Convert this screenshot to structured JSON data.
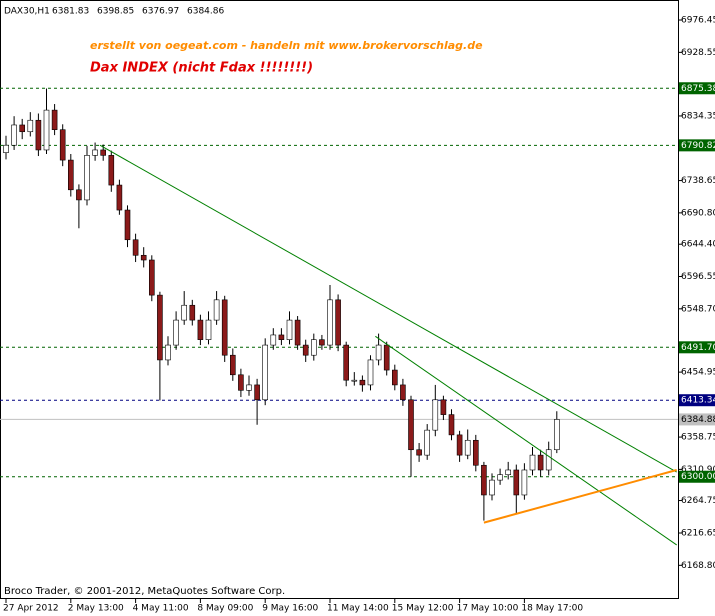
{
  "chart_data": {
    "type": "candlestick",
    "symbol": "DAX30,H1",
    "header_ohlc": [
      6381.83,
      6398.85,
      6376.97,
      6384.86
    ],
    "watermark": "erstellt von oegeat.com - handeln mit www.brokervorschlag.de",
    "title": "Dax  INDEX   (nicht Fdax !!!!!!!!)",
    "footer": "Broco Trader, © 2001-2012, MetaQuotes Software Corp.",
    "categories": [
      "27 Apr 2012",
      null,
      null,
      null,
      null,
      null,
      null,
      null,
      "2 May 13:00",
      null,
      null,
      null,
      null,
      null,
      null,
      null,
      "4 May 11:00",
      null,
      null,
      null,
      null,
      null,
      null,
      null,
      "8 May 09:00",
      null,
      null,
      null,
      null,
      null,
      null,
      null,
      "9 May 16:00",
      null,
      null,
      null,
      null,
      null,
      null,
      null,
      "11 May 14:00",
      null,
      null,
      null,
      null,
      null,
      null,
      null,
      "15 May 12:00",
      null,
      null,
      null,
      null,
      null,
      null,
      null,
      "17 May 10:00",
      null,
      null,
      null,
      null,
      null,
      null,
      null,
      "18 May 17:00",
      null,
      null,
      null,
      null
    ],
    "open": [
      6780,
      6791,
      6821,
      6811,
      6828,
      6784,
      6843,
      6814,
      6769,
      6725,
      6710,
      6776,
      6784,
      6776,
      6732,
      6695,
      6651,
      6628,
      6621,
      6569,
      6473,
      6495,
      6532,
      6554,
      6532,
      6503,
      6532,
      6562,
      6480,
      6451,
      6428,
      6436,
      6414,
      6495,
      6510,
      6503,
      6532,
      6495,
      6480,
      6503,
      6495,
      6562,
      6495,
      6443,
      6443,
      6436,
      6473,
      6495,
      6458,
      6436,
      6414,
      6340,
      6332,
      6369,
      6414,
      6392,
      6362,
      6332,
      6354,
      6317,
      6273,
      6295,
      6303,
      6310,
      6273,
      6310,
      6332,
      6310,
      6340
    ],
    "high": [
      6805,
      6834,
      6830,
      6840,
      6838,
      6875,
      6852,
      6822,
      6778,
      6733,
      6790,
      6795,
      6792,
      6783,
      6740,
      6702,
      6660,
      6640,
      6628,
      6574,
      6508,
      6545,
      6575,
      6562,
      6540,
      6545,
      6575,
      6568,
      6490,
      6460,
      6450,
      6445,
      6505,
      6520,
      6520,
      6545,
      6538,
      6503,
      6512,
      6510,
      6584,
      6570,
      6500,
      6455,
      6450,
      6480,
      6512,
      6500,
      6466,
      6445,
      6420,
      6350,
      6378,
      6436,
      6420,
      6400,
      6368,
      6370,
      6362,
      6322,
      6305,
      6312,
      6322,
      6318,
      6320,
      6344,
      6340,
      6352,
      6397
    ],
    "low": [
      6770,
      6784,
      6800,
      6804,
      6775,
      6778,
      6806,
      6760,
      6715,
      6668,
      6702,
      6768,
      6768,
      6722,
      6688,
      6640,
      6618,
      6610,
      6560,
      6413,
      6465,
      6488,
      6525,
      6524,
      6495,
      6496,
      6525,
      6470,
      6442,
      6418,
      6420,
      6377,
      6406,
      6488,
      6495,
      6496,
      6488,
      6470,
      6472,
      6488,
      6488,
      6486,
      6434,
      6435,
      6426,
      6428,
      6465,
      6450,
      6428,
      6405,
      6300,
      6322,
      6325,
      6360,
      6384,
      6354,
      6322,
      6326,
      6308,
      6235,
      6265,
      6288,
      6296,
      6245,
      6266,
      6302,
      6300,
      6302,
      6335
    ],
    "close": [
      6791,
      6821,
      6811,
      6828,
      6784,
      6843,
      6814,
      6769,
      6725,
      6710,
      6776,
      6784,
      6776,
      6732,
      6695,
      6651,
      6628,
      6621,
      6569,
      6473,
      6495,
      6532,
      6554,
      6532,
      6503,
      6532,
      6562,
      6480,
      6451,
      6428,
      6436,
      6414,
      6495,
      6510,
      6503,
      6532,
      6495,
      6480,
      6503,
      6495,
      6562,
      6495,
      6443,
      6443,
      6436,
      6473,
      6495,
      6458,
      6436,
      6414,
      6340,
      6332,
      6369,
      6414,
      6392,
      6362,
      6332,
      6354,
      6317,
      6273,
      6295,
      6303,
      6310,
      6273,
      6310,
      6332,
      6310,
      6340,
      6384.88
    ],
    "up_color": "#ffffff",
    "down_color": "#8b1a1a",
    "ylim": [
      6120.4,
      7006.1
    ],
    "yticks": [
      6976.45,
      6928.55,
      6834.35,
      6738.65,
      {
        "value": 6690.8,
        "label": "6690.80"
      },
      {
        "value": 6644.4,
        "label": "6644.40"
      },
      6596.55,
      {
        "value": 6548.7,
        "label": "6548.70"
      },
      6454.95,
      6358.75,
      {
        "value": 6310.9,
        "label": "6310.90"
      },
      6264.75,
      6216.65,
      {
        "value": 6168.8,
        "label": "6168.80"
      }
    ],
    "levels": [
      {
        "value": 6875.38,
        "color": "#006400"
      },
      {
        "value": 6790.82,
        "color": "#006400"
      },
      {
        "value": 6491.7,
        "label": "6491.70",
        "color": "#006400"
      },
      {
        "value": 6413.34,
        "color": "#000080"
      },
      {
        "value": 6384.88,
        "color": "#c0c0c0"
      },
      {
        "value": 6300,
        "label": "6300.00",
        "color": "#006400"
      }
    ],
    "trendlines": [
      {
        "color": "#008000",
        "x": [
          11.6,
          82.8
        ],
        "y": [
          6791,
          6307
        ]
      },
      {
        "color": "#008000",
        "x": [
          45.6,
          82.8
        ],
        "y": [
          6508,
          6199
        ]
      },
      {
        "color": "#ff8c00",
        "x": [
          59,
          82.8
        ],
        "y": [
          6232,
          6310
        ]
      }
    ]
  }
}
